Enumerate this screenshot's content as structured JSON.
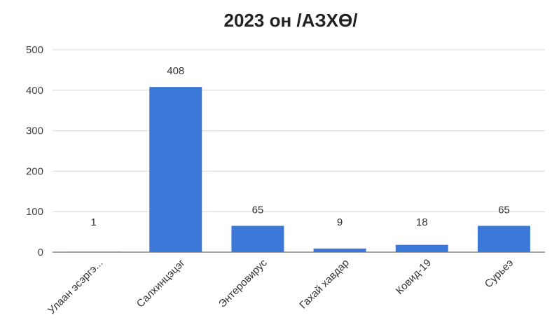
{
  "chart_data": {
    "type": "bar",
    "title": "2023 он /АЗХӨ/",
    "categories": [
      "Улаан эсэргэ...",
      "Салхинцэцэг",
      "Энтеровирус",
      "Гахай хавдар",
      "Ковид-19",
      "Сурьеэ"
    ],
    "values": [
      1,
      408,
      65,
      9,
      18,
      65
    ],
    "ylim": [
      0,
      500
    ],
    "yticks": [
      0,
      100,
      200,
      300,
      400,
      500
    ],
    "bar_color": "#3c78d8",
    "grid": true,
    "legend": "none"
  }
}
